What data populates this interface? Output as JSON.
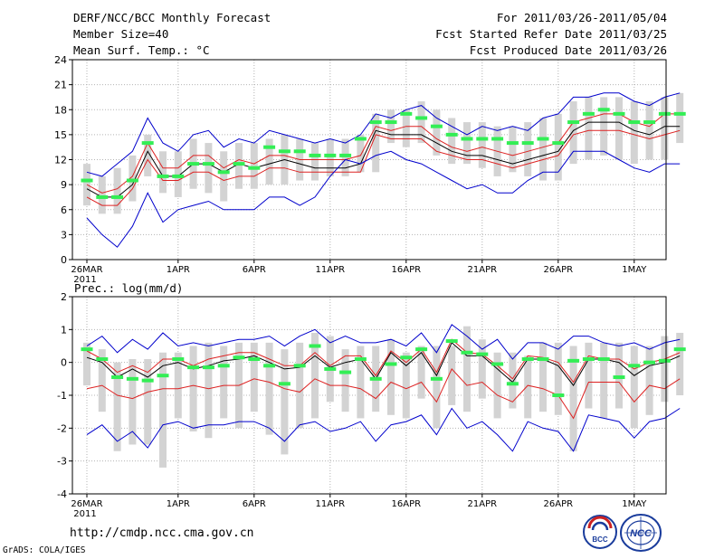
{
  "header": {
    "title": "DERF/NCC/BCC Monthly Forecast",
    "member": "Member Size=40",
    "variable": "Mean Surf. Temp.: °C",
    "for_range": "For 2011/03/26-2011/05/04",
    "fcst_started": "Fcst Started Refer Date 2011/03/25",
    "fcst_produced": "Fcst Produced Date 2011/03/26"
  },
  "footer": {
    "url": "http://cmdp.ncc.cma.gov.cn",
    "grads": "GrADS: COLA/IGES",
    "logo_left": "BCC",
    "logo_right": "NCC"
  },
  "colors": {
    "envelope": "#0000cc",
    "ensemble": "#dd2222",
    "mean": "#000000",
    "obs": "#33ee55",
    "bar": "#d3d3d3",
    "grid": "#b4b4b4"
  },
  "chart_data": [
    {
      "type": "line",
      "title": "Mean Surf. Temp.: °C",
      "ylabel": "°C",
      "ylim": [
        0,
        24
      ],
      "yticks": [
        0,
        3,
        6,
        9,
        12,
        15,
        18,
        21,
        24
      ],
      "xticks": [
        {
          "day": 1,
          "label": "26MAR",
          "sub": "2011"
        },
        {
          "day": 7,
          "label": "1APR"
        },
        {
          "day": 12,
          "label": "6APR"
        },
        {
          "day": 17,
          "label": "11APR"
        },
        {
          "day": 22,
          "label": "16APR"
        },
        {
          "day": 27,
          "label": "21APR"
        },
        {
          "day": 32,
          "label": "26APR"
        },
        {
          "day": 37,
          "label": "1MAY"
        }
      ],
      "x": [
        1,
        2,
        3,
        4,
        5,
        6,
        7,
        8,
        9,
        10,
        11,
        12,
        13,
        14,
        15,
        16,
        17,
        18,
        19,
        20,
        21,
        22,
        23,
        24,
        25,
        26,
        27,
        28,
        29,
        30,
        31,
        32,
        33,
        34,
        35,
        36,
        37,
        38,
        39,
        40
      ],
      "bars_low": [
        6.5,
        5.5,
        5.5,
        7,
        10,
        8,
        7.5,
        8.5,
        8,
        7,
        8.5,
        8.5,
        9,
        9,
        9.5,
        9.5,
        10,
        10,
        10.5,
        10.5,
        14,
        13.5,
        14,
        12.5,
        11.5,
        11.5,
        11,
        10,
        10.5,
        10,
        9.5,
        9.5,
        11.5,
        12,
        12.5,
        12,
        11.5,
        12,
        12,
        14
      ],
      "bars_high": [
        11.5,
        10,
        11,
        12.5,
        15,
        13,
        13,
        14.5,
        14,
        13,
        14,
        14,
        14.5,
        15,
        14.5,
        14,
        14.5,
        14.5,
        15,
        17.5,
        18,
        18,
        19,
        18,
        17,
        16.5,
        16.5,
        16,
        16,
        16.5,
        17,
        17.5,
        19,
        19.5,
        19.5,
        19.5,
        19,
        19,
        19.5,
        20
      ],
      "series": [
        {
          "name": "max",
          "values": [
            10.5,
            10,
            11.5,
            13,
            17,
            14,
            13,
            15,
            15.5,
            13.5,
            14.5,
            14,
            15.5,
            15,
            14.5,
            14,
            14.5,
            14,
            15,
            17.5,
            17,
            18,
            18.5,
            17,
            16,
            15,
            16,
            15.5,
            16,
            15.5,
            17,
            17.5,
            19.5,
            19.5,
            20,
            20,
            19,
            18.5,
            19.5,
            20
          ]
        },
        {
          "name": "upper",
          "values": [
            9,
            8,
            8.5,
            10,
            14,
            11,
            11,
            12.5,
            12.5,
            11,
            12,
            11.5,
            12.5,
            12.5,
            12,
            12,
            12,
            12,
            12.5,
            16,
            15.5,
            16,
            16,
            14.5,
            13.5,
            13,
            13.5,
            13,
            12.5,
            13,
            13.5,
            14,
            16.5,
            17,
            17.5,
            17.5,
            16.5,
            16,
            17.5,
            17.5
          ]
        },
        {
          "name": "mean",
          "values": [
            8.5,
            7.5,
            7.5,
            9,
            13,
            10,
            10,
            11.5,
            11.5,
            10.5,
            11.5,
            11,
            11.5,
            12,
            11.5,
            11,
            11,
            11,
            11.5,
            15.5,
            15,
            15,
            15,
            14,
            13,
            12.5,
            12.5,
            12,
            11.5,
            12,
            12.5,
            13,
            15.5,
            16.5,
            16.5,
            16.5,
            15.5,
            15,
            16,
            16
          ]
        },
        {
          "name": "lower",
          "values": [
            7.5,
            6.5,
            6.5,
            8.5,
            12,
            9.5,
            9.5,
            10.5,
            10.5,
            9.5,
            10,
            10,
            11,
            11,
            10.5,
            10.5,
            10.5,
            10.5,
            10.5,
            15,
            14.5,
            14.5,
            14.5,
            13,
            12.5,
            12,
            12,
            11.5,
            11,
            11.5,
            12,
            12.5,
            15,
            15.5,
            15.5,
            15.5,
            15,
            14.5,
            15,
            15.5
          ]
        },
        {
          "name": "min",
          "values": [
            5,
            3,
            1.5,
            4,
            8,
            4.5,
            6,
            6.5,
            7,
            6,
            6,
            6,
            7.5,
            7.5,
            6.5,
            7.5,
            10,
            12,
            11.5,
            12.5,
            13,
            12,
            11.5,
            10.5,
            9.5,
            8.5,
            9,
            8,
            8,
            9.5,
            10.5,
            10.5,
            13,
            13,
            13,
            12,
            11,
            10.5,
            11.5,
            11.5
          ]
        }
      ],
      "obs": [
        9.5,
        7.5,
        7.5,
        9.5,
        14,
        10,
        10,
        11.5,
        11.5,
        10.5,
        11.5,
        11,
        13.5,
        13,
        13,
        12.5,
        12.5,
        12.5,
        14.5,
        16.5,
        16.5,
        17.5,
        17,
        16,
        15,
        14.5,
        14.5,
        14.5,
        14,
        14,
        14.5,
        14,
        16.5,
        17.5,
        18,
        17.5,
        16.5,
        16.5,
        17.5,
        17.5
      ]
    },
    {
      "type": "line",
      "title": "Prec.: log(mm/d)",
      "ylabel": "log(mm/d)",
      "ylim": [
        -4,
        2
      ],
      "yticks": [
        -4,
        -3,
        -2,
        -1,
        0,
        1,
        2
      ],
      "xticks": [
        {
          "day": 1,
          "label": "26MAR",
          "sub": "2011"
        },
        {
          "day": 7,
          "label": "1APR"
        },
        {
          "day": 12,
          "label": "6APR"
        },
        {
          "day": 17,
          "label": "11APR"
        },
        {
          "day": 22,
          "label": "16APR"
        },
        {
          "day": 27,
          "label": "21APR"
        },
        {
          "day": 32,
          "label": "26APR"
        },
        {
          "day": 37,
          "label": "1MAY"
        }
      ],
      "x": [
        1,
        2,
        3,
        4,
        5,
        6,
        7,
        8,
        9,
        10,
        11,
        12,
        13,
        14,
        15,
        16,
        17,
        18,
        19,
        20,
        21,
        22,
        23,
        24,
        25,
        26,
        27,
        28,
        29,
        30,
        31,
        32,
        33,
        34,
        35,
        36,
        37,
        38,
        39,
        40
      ],
      "bars_low": [
        -0.7,
        -1.5,
        -2.7,
        -2.5,
        -2.5,
        -3.2,
        -1.7,
        -2.1,
        -2.3,
        -1.7,
        -2,
        -1.5,
        -2.2,
        -2.8,
        -2,
        -1.7,
        -1.2,
        -1.5,
        -1.7,
        -1.5,
        -1.6,
        -1.7,
        -1.1,
        -2,
        -1.3,
        -1.5,
        -1.1,
        -1.7,
        -1.4,
        -1.7,
        -1.5,
        -1.6,
        -2.7,
        -1.4,
        -1.7,
        -1.4,
        -2,
        -1.6,
        -1.2,
        -1
      ],
      "bars_high": [
        0.6,
        0.4,
        0,
        0.1,
        0.1,
        0.3,
        0.3,
        0.5,
        0.6,
        0.5,
        0.6,
        0.6,
        0.6,
        0.4,
        0.6,
        0.9,
        0.8,
        0.4,
        0.5,
        0.5,
        0.7,
        0.3,
        0.5,
        0.5,
        0.5,
        1.1,
        0.7,
        0.3,
        0.3,
        0.2,
        0.6,
        0.6,
        0.5,
        0.6,
        0.6,
        0.6,
        0.5,
        0.5,
        0.8,
        0.9
      ],
      "series": [
        {
          "name": "max",
          "values": [
            0.5,
            0.8,
            0.3,
            0.7,
            0.4,
            0.9,
            0.5,
            0.6,
            0.5,
            0.6,
            0.7,
            0.7,
            0.8,
            0.5,
            0.8,
            1.0,
            0.6,
            0.8,
            0.6,
            0.6,
            0.7,
            0.5,
            0.9,
            0.3,
            1.15,
            0.8,
            0.4,
            0.7,
            0.1,
            0.6,
            0.6,
            0.4,
            0.8,
            0.8,
            0.6,
            0.5,
            0.6,
            0.4,
            0.6,
            0.7
          ]
        },
        {
          "name": "upper",
          "values": [
            0.35,
            0.1,
            -0.3,
            -0.1,
            -0.3,
            0.1,
            0.1,
            -0.1,
            0.1,
            0.2,
            0.3,
            0.3,
            0.1,
            -0.1,
            -0.1,
            0.3,
            -0.1,
            0.2,
            0.2,
            -0.4,
            0.35,
            0.0,
            0.4,
            -0.3,
            0.7,
            0.3,
            0.25,
            -0.1,
            -0.5,
            0.2,
            0.15,
            0.0,
            -0.6,
            0.2,
            0.1,
            0.1,
            -0.2,
            0.0,
            0.1,
            0.3
          ]
        },
        {
          "name": "mean",
          "values": [
            0.15,
            0.0,
            -0.45,
            -0.2,
            -0.45,
            -0.1,
            0.0,
            -0.2,
            -0.1,
            0.05,
            0.1,
            0.2,
            0.0,
            -0.2,
            -0.15,
            0.2,
            -0.15,
            0.0,
            0.1,
            -0.5,
            0.3,
            -0.1,
            0.3,
            -0.4,
            0.6,
            0.2,
            0.2,
            -0.2,
            -0.6,
            0.1,
            0.1,
            -0.1,
            -0.7,
            0.1,
            0.1,
            0.0,
            -0.4,
            -0.1,
            0.0,
            0.2
          ]
        },
        {
          "name": "lower",
          "values": [
            -0.8,
            -0.7,
            -1.0,
            -1.1,
            -0.9,
            -0.8,
            -0.8,
            -0.7,
            -0.8,
            -0.7,
            -0.7,
            -0.5,
            -0.6,
            -0.8,
            -0.9,
            -0.5,
            -0.7,
            -0.7,
            -0.8,
            -1.1,
            -0.6,
            -0.8,
            -0.6,
            -1.2,
            -0.2,
            -0.7,
            -0.6,
            -1.0,
            -1.2,
            -0.7,
            -0.8,
            -1.0,
            -1.7,
            -0.6,
            -0.6,
            -0.6,
            -1.2,
            -0.7,
            -0.8,
            -0.5
          ]
        },
        {
          "name": "min",
          "values": [
            -2.2,
            -1.9,
            -2.4,
            -2.1,
            -2.6,
            -1.9,
            -1.8,
            -2.0,
            -1.9,
            -1.9,
            -1.8,
            -1.8,
            -2.0,
            -2.4,
            -1.9,
            -1.8,
            -2.1,
            -2.0,
            -1.8,
            -2.4,
            -1.9,
            -1.8,
            -1.6,
            -2.2,
            -1.4,
            -2.0,
            -1.8,
            -2.2,
            -2.7,
            -1.8,
            -2.0,
            -2.1,
            -2.7,
            -1.6,
            -1.7,
            -1.8,
            -2.3,
            -1.8,
            -1.7,
            -1.4
          ]
        }
      ],
      "obs": [
        0.4,
        0.1,
        -0.45,
        -0.5,
        -0.55,
        -0.4,
        0.1,
        -0.15,
        -0.15,
        -0.1,
        0.15,
        0.1,
        -0.1,
        -0.65,
        -0.1,
        0.5,
        -0.2,
        -0.3,
        0.1,
        -0.5,
        -0.05,
        0.15,
        0.4,
        -0.5,
        0.65,
        0.3,
        0.25,
        -0.05,
        -0.65,
        0.1,
        0.1,
        -1.0,
        0.05,
        0.1,
        0.1,
        -0.45,
        -0.1,
        0.0,
        0.05,
        0.4
      ]
    }
  ]
}
